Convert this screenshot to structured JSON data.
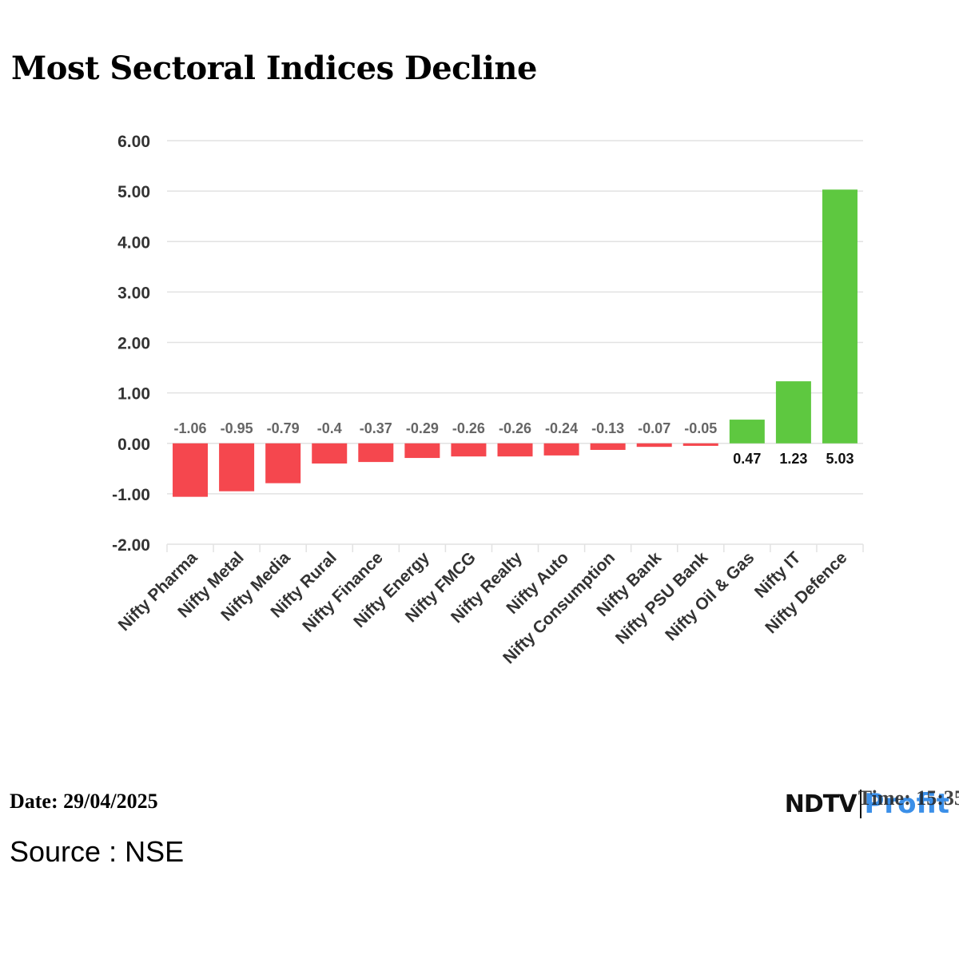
{
  "title": "Most Sectoral Indices Decline",
  "footer": {
    "date": "Date: 29/04/2025",
    "source": "Source : NSE",
    "time": "Time: 15:35",
    "logo_ndtv": "NDTV",
    "logo_profit": "Profit"
  },
  "colors": {
    "negative": "#f5474e",
    "positive": "#5ec840",
    "grid": "#e2e2e2",
    "tick_text": "#333333",
    "neg_label": "#666666",
    "pos_label": "#111111"
  },
  "chart_data": {
    "type": "bar",
    "title": "Most Sectoral Indices Decline",
    "xlabel": "",
    "ylabel": "",
    "ylim": [
      -2.0,
      6.0
    ],
    "yticks": [
      "6.00",
      "5.00",
      "4.00",
      "3.00",
      "2.00",
      "1.00",
      "0.00",
      "-1.00",
      "-2.00"
    ],
    "ytick_values": [
      6,
      5,
      4,
      3,
      2,
      1,
      0,
      -1,
      -2
    ],
    "categories": [
      "Nifty Pharma",
      "Nifty Metal",
      "Nifty Media",
      "Nifty Rural",
      "Nifty Finance",
      "Nifty Energy",
      "Nifty FMCG",
      "Nifty Realty",
      "Nifty Auto",
      "Nifty Consumption",
      "Nifty Bank",
      "Nifty PSU Bank",
      "Nifty Oil & Gas",
      "Nifty IT",
      "Nifty Defence"
    ],
    "values": [
      -1.06,
      -0.95,
      -0.79,
      -0.4,
      -0.37,
      -0.29,
      -0.26,
      -0.26,
      -0.24,
      -0.13,
      -0.07,
      -0.05,
      0.47,
      1.23,
      5.03
    ],
    "value_labels": [
      "-1.06",
      "-0.95",
      "-0.79",
      "-0.4",
      "-0.37",
      "-0.29",
      "-0.26",
      "-0.26",
      "-0.24",
      "-0.13",
      "-0.07",
      "-0.05",
      "0.47",
      "1.23",
      "5.03"
    ],
    "grid": true,
    "legend": "none"
  }
}
